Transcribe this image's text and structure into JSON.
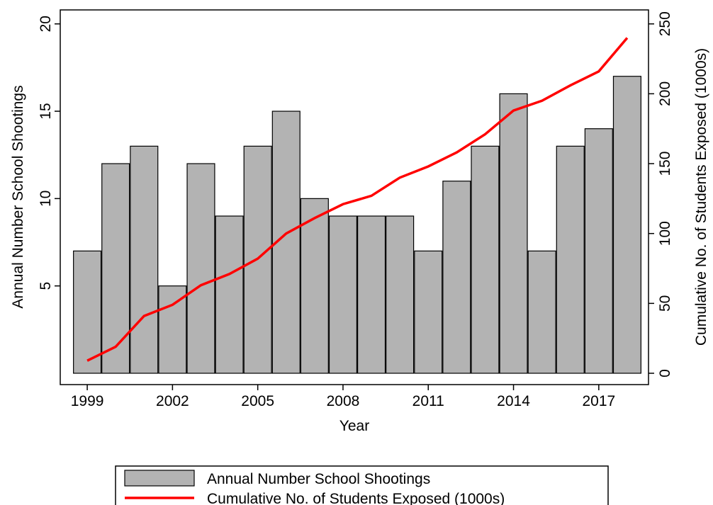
{
  "chart_data": {
    "type": "bar-line",
    "x_label": "Year",
    "y_label": "Annual Number School Shootings",
    "y2_label": "Cumulative No. of Students Exposed (1000s)",
    "x": [
      1999,
      2000,
      2001,
      2002,
      2003,
      2004,
      2005,
      2006,
      2007,
      2008,
      2009,
      2010,
      2011,
      2012,
      2013,
      2014,
      2015,
      2016,
      2017,
      2018
    ],
    "xlim": [
      1998.05,
      2018.75
    ],
    "xticks": [
      1999,
      2002,
      2005,
      2008,
      2011,
      2014,
      2017
    ],
    "ylim": [
      0,
      20.8
    ],
    "yticks": [
      5,
      10,
      15,
      20
    ],
    "y2lim": [
      0,
      260
    ],
    "y2ticks": [
      0,
      50,
      100,
      150,
      200,
      250
    ],
    "series": [
      {
        "name": "Annual Number School Shootings",
        "type": "bar",
        "color": "#b3b3b3",
        "values": [
          7,
          12,
          13,
          5,
          12,
          9,
          13,
          15,
          10,
          9,
          9,
          9,
          7,
          11,
          13,
          16,
          7,
          13,
          14,
          17
        ]
      },
      {
        "name": "Cumulative No. of Students Exposed (1000s)",
        "type": "line",
        "axis": "y2",
        "color": "#ff0000",
        "values": [
          9,
          19,
          41,
          49,
          63,
          71,
          82,
          100,
          111,
          121,
          127,
          140,
          148,
          158,
          171,
          188,
          195,
          206,
          216,
          240
        ]
      }
    ]
  }
}
